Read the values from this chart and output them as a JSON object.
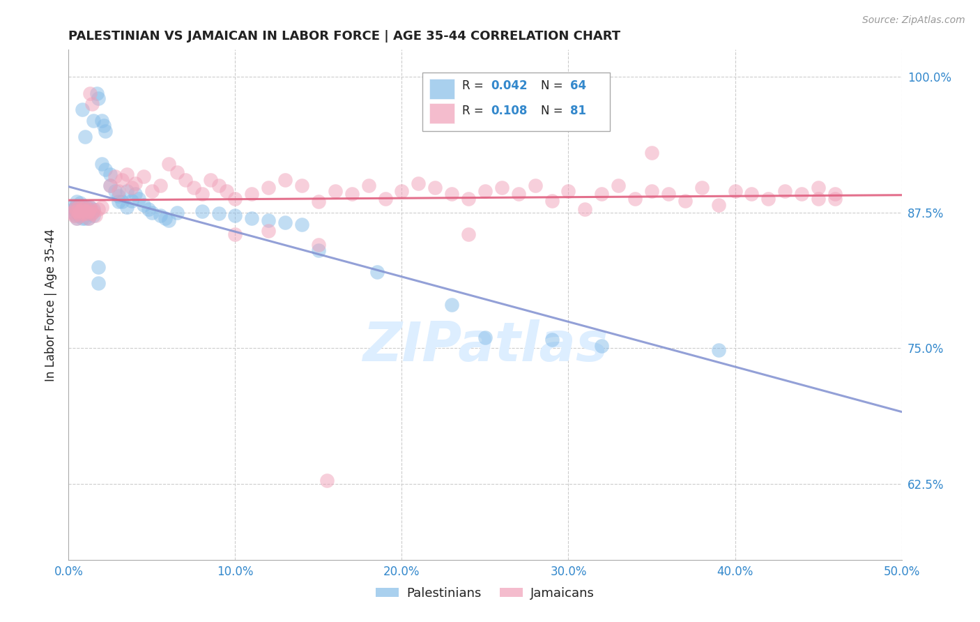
{
  "title": "PALESTINIAN VS JAMAICAN IN LABOR FORCE | AGE 35-44 CORRELATION CHART",
  "source": "Source: ZipAtlas.com",
  "ylabel": "In Labor Force | Age 35-44",
  "xlim": [
    0.0,
    0.5
  ],
  "ylim": [
    0.555,
    1.025
  ],
  "xtick_vals": [
    0.0,
    0.1,
    0.2,
    0.3,
    0.4,
    0.5
  ],
  "xtick_labels": [
    "0.0%",
    "10.0%",
    "20.0%",
    "30.0%",
    "40.0%",
    "50.0%"
  ],
  "ytick_vals": [
    0.625,
    0.75,
    0.875,
    1.0
  ],
  "ytick_labels": [
    "62.5%",
    "75.0%",
    "87.5%",
    "100.0%"
  ],
  "legend_r_blue": "0.042",
  "legend_n_blue": "64",
  "legend_r_pink": "0.108",
  "legend_n_pink": "81",
  "blue_color": "#85bce8",
  "pink_color": "#f0a0b8",
  "pink_line_color": "#e06080",
  "blue_line_color": "#8090d0",
  "title_color": "#222222",
  "axis_label_color": "#222222",
  "tick_color": "#3388cc",
  "grid_color": "#cccccc",
  "watermark_color": "#ddeeff",
  "legend_frame_color": "#aaaaaa",
  "source_color": "#999999"
}
